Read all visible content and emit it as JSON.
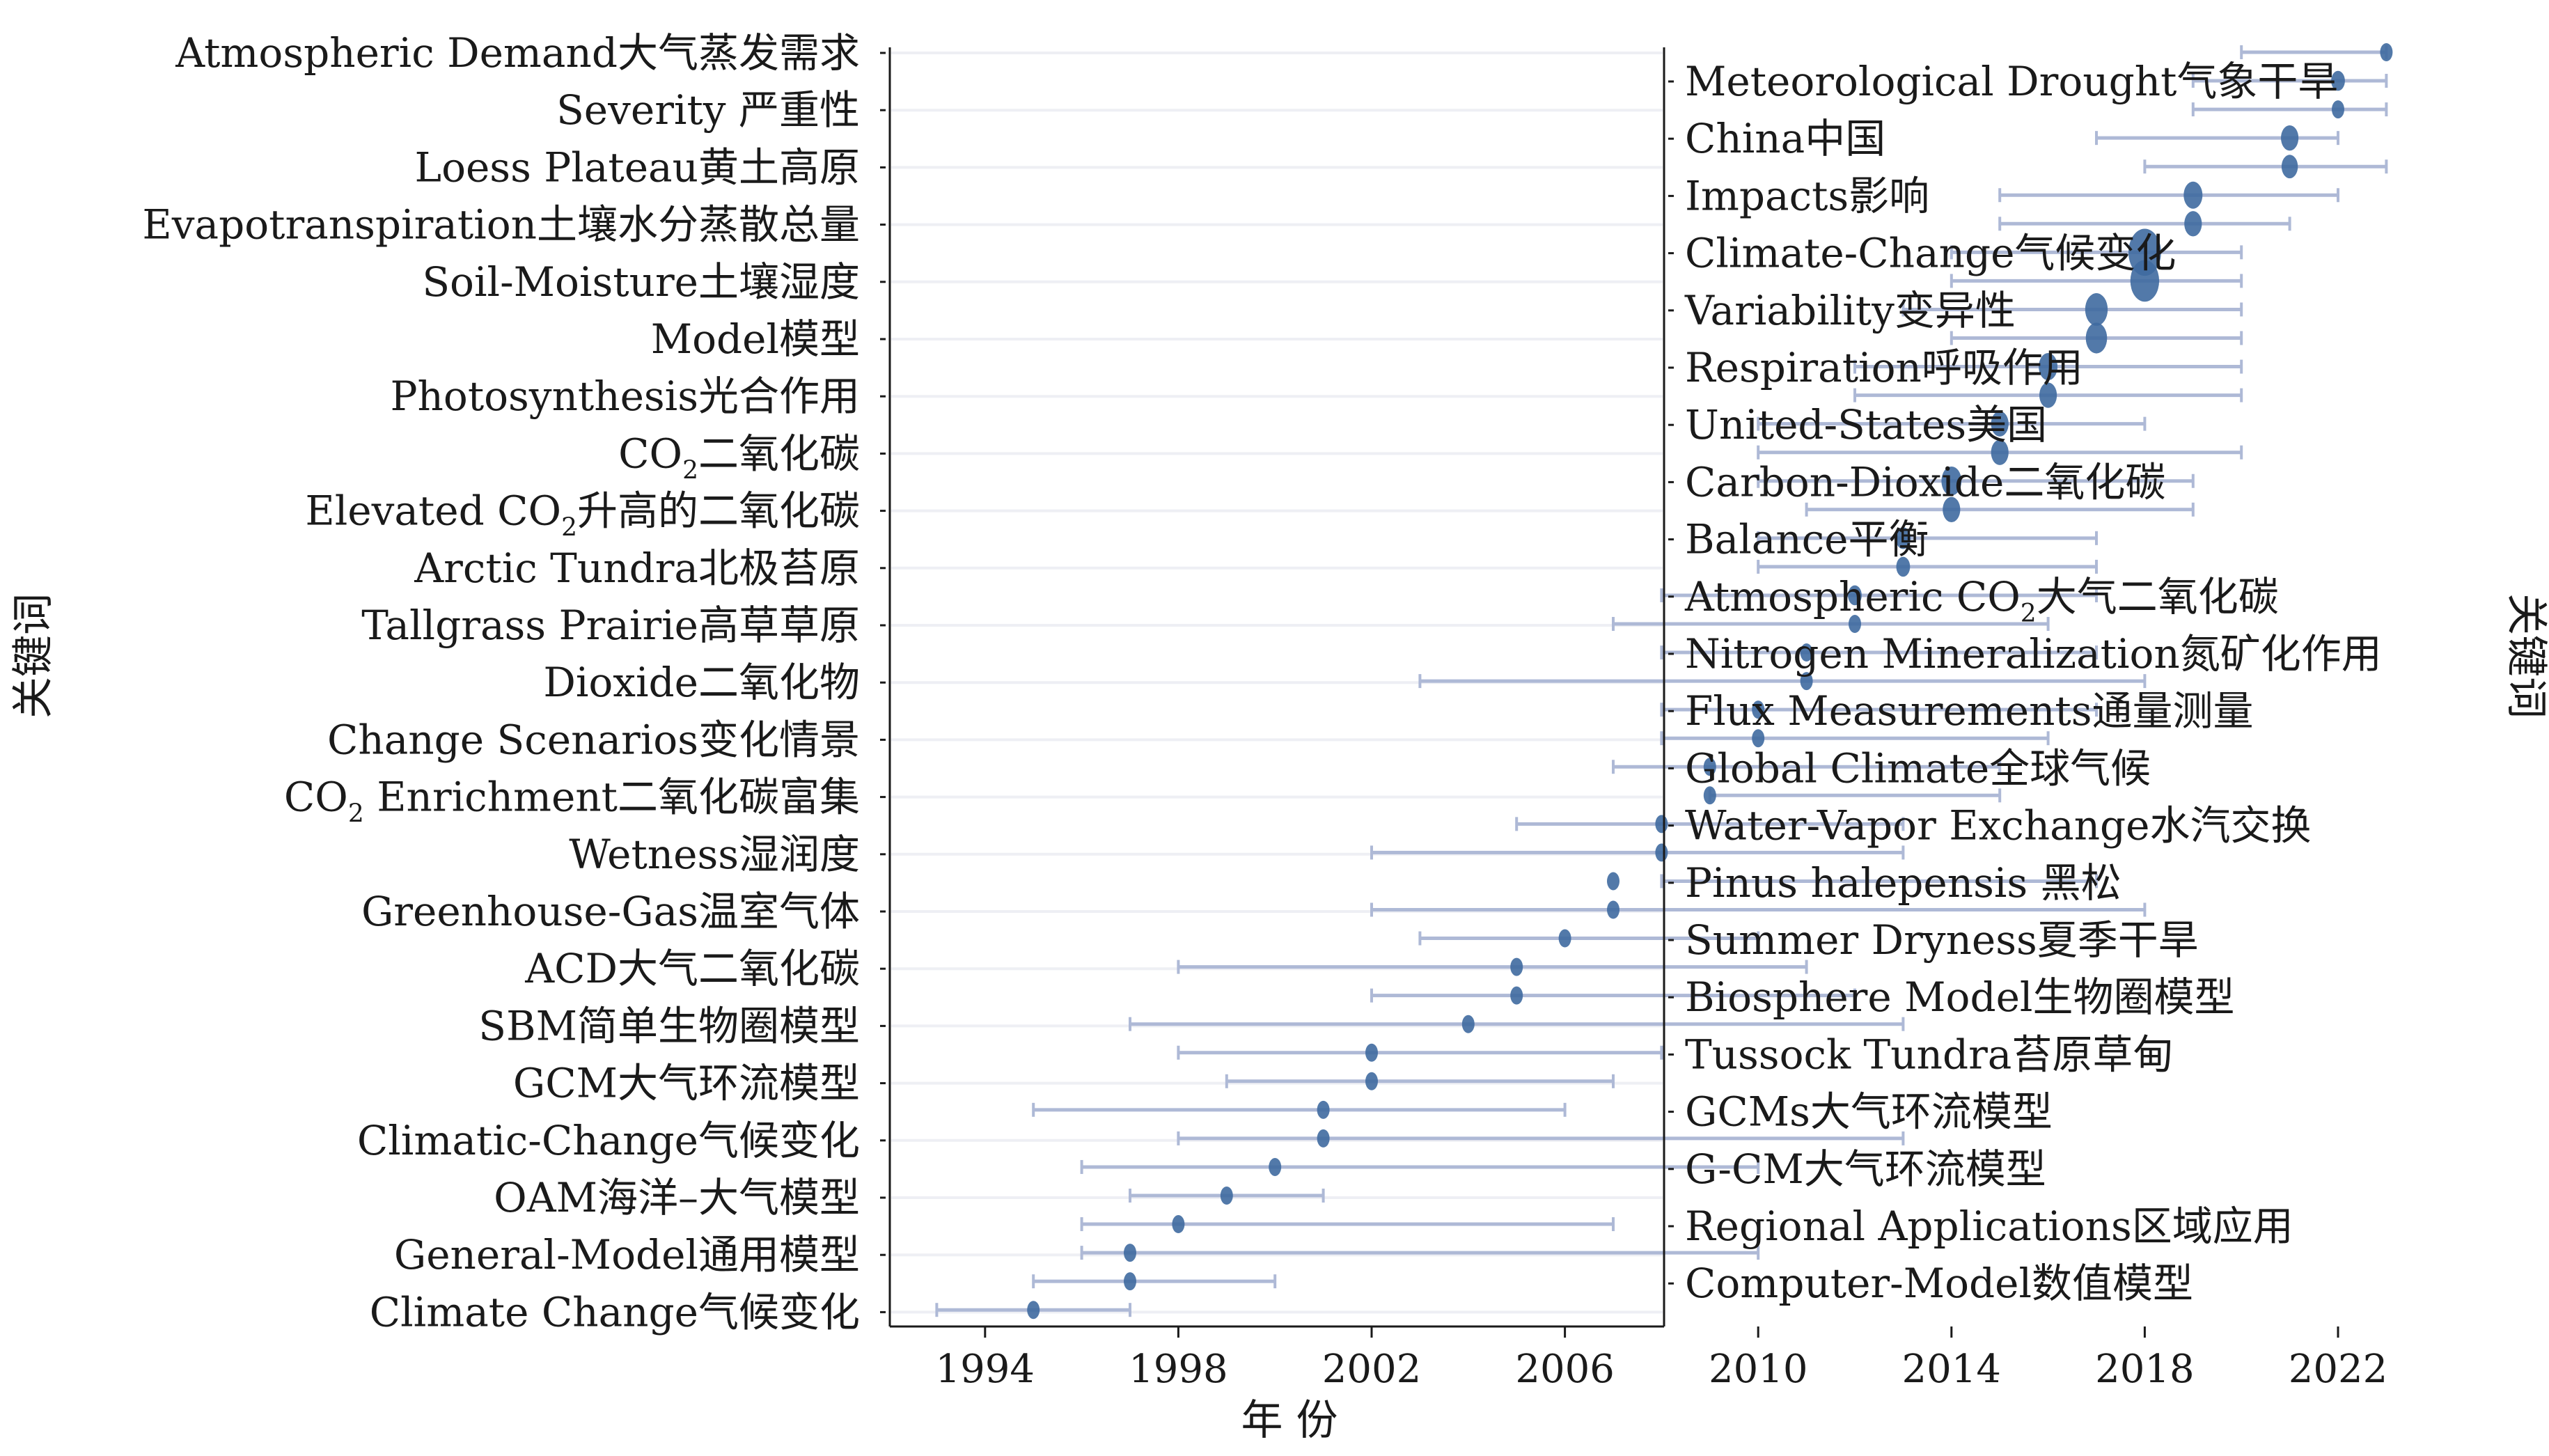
{
  "chart_data": {
    "type": "scatter",
    "title": "",
    "xlabel": "年 份",
    "ylabel_left": "关键词",
    "ylabel_right": "关键词",
    "xlim": [
      1992,
      2024
    ],
    "x_ticks": [
      1994,
      1998,
      2002,
      2006,
      2010,
      2014,
      2018,
      2022
    ],
    "colors": {
      "point": "#3f6aa0",
      "range": "#aeb9d6",
      "gridline": "#eeeff4",
      "axis": "#1a1a1a"
    },
    "left_labels": [
      "Atmospheric Demand大气蒸发需求",
      "Severity 严重性",
      "Loess Plateau黄土高原",
      "Evapotranspiration土壤水分蒸散总量",
      "Soil-Moisture土壤湿度",
      "Model模型",
      "Photosynthesis光合作用",
      "CO₂二氧化碳",
      "Elevated CO₂升高的二氧化碳",
      "Arctic Tundra北极苔原",
      "Tallgrass Prairie高草草原",
      "Dioxide二氧化物",
      "Change Scenarios变化情景",
      "CO₂ Enrichment二氧化碳富集",
      "Wetness湿润度",
      "Greenhouse-Gas温室气体",
      "ACD大气二氧化碳",
      "SBM简单生物圈模型",
      "GCM大气环流模型",
      "Climatic-Change气候变化",
      "OAM海洋–大气模型",
      "General-Model通用模型",
      "Climate Change气候变化"
    ],
    "right_labels": [
      "Meteorological Drought气象干旱",
      "China中国",
      "Impacts影响",
      "Climate-Change气候变化",
      "Variability变异性",
      "Respiration呼吸作用",
      "United-States美国",
      "Carbon-Dioxide二氧化碳",
      "Balance平衡",
      "Atmospheric CO₂大气二氧化碳",
      "Nitrogen Mineralization氮矿化作用",
      "Flux Measurements通量测量",
      "Global Climate全球气候",
      "Water-Vapor Exchange水汽交换",
      "Pinus halepensis 黑松",
      "Summer Dryness夏季干旱",
      "Biosphere Model生物圈模型",
      "Tussock Tundra苔原草甸",
      "GCMs大气环流模型",
      "G-CM大气环流模型",
      "Regional Applications区域应用",
      "Computer-Model数值模型"
    ],
    "points": [
      {
        "label": "Atmospheric Demand大气蒸发需求",
        "year": 2023,
        "start": 2020,
        "end": 2023,
        "size": 1.0
      },
      {
        "label": "Meteorological Drought气象干旱",
        "year": 2022,
        "start": 2019,
        "end": 2023,
        "size": 1.1
      },
      {
        "label": "Severity 严重性",
        "year": 2022,
        "start": 2019,
        "end": 2023,
        "size": 1.0
      },
      {
        "label": "China中国",
        "year": 2021,
        "start": 2017,
        "end": 2022,
        "size": 1.4
      },
      {
        "label": "Loess Plateau黄土高原",
        "year": 2021,
        "start": 2018,
        "end": 2023,
        "size": 1.3
      },
      {
        "label": "Impacts影响",
        "year": 2019,
        "start": 2015,
        "end": 2022,
        "size": 1.5
      },
      {
        "label": "Evapotranspiration土壤水分蒸散总量",
        "year": 2019,
        "start": 2015,
        "end": 2021,
        "size": 1.4
      },
      {
        "label": "Climate-Change气候变化",
        "year": 2018,
        "start": 2014,
        "end": 2020,
        "size": 2.6
      },
      {
        "label": "Soil-Moisture土壤湿度",
        "year": 2018,
        "start": 2014,
        "end": 2020,
        "size": 2.3
      },
      {
        "label": "Variability变异性",
        "year": 2017,
        "start": 2013,
        "end": 2020,
        "size": 1.8
      },
      {
        "label": "Model模型",
        "year": 2017,
        "start": 2014,
        "end": 2020,
        "size": 1.7
      },
      {
        "label": "Respiration呼吸作用",
        "year": 2016,
        "start": 2012,
        "end": 2020,
        "size": 1.5
      },
      {
        "label": "Photosynthesis光合作用",
        "year": 2016,
        "start": 2012,
        "end": 2020,
        "size": 1.4
      },
      {
        "label": "United-States美国",
        "year": 2015,
        "start": 2010,
        "end": 2018,
        "size": 1.4
      },
      {
        "label": "CO₂二氧化碳",
        "year": 2015,
        "start": 2010,
        "end": 2020,
        "size": 1.4
      },
      {
        "label": "Carbon-Dioxide二氧化碳",
        "year": 2014,
        "start": 2010,
        "end": 2019,
        "size": 1.6
      },
      {
        "label": "Elevated CO₂升高的二氧化碳",
        "year": 2014,
        "start": 2011,
        "end": 2019,
        "size": 1.4
      },
      {
        "label": "Balance平衡",
        "year": 2013,
        "start": 2010,
        "end": 2017,
        "size": 1.2
      },
      {
        "label": "Arctic Tundra北极苔原",
        "year": 2013,
        "start": 2010,
        "end": 2017,
        "size": 1.1
      },
      {
        "label": "Atmospheric CO₂大气二氧化碳",
        "year": 2012,
        "start": 2008,
        "end": 2017,
        "size": 1.1
      },
      {
        "label": "Tallgrass Prairie高草草原",
        "year": 2012,
        "start": 2007,
        "end": 2016,
        "size": 1.0
      },
      {
        "label": "Nitrogen Mineralization氮矿化作用",
        "year": 2011,
        "start": 2008,
        "end": 2017,
        "size": 1.0
      },
      {
        "label": "Dioxide二氧化物",
        "year": 2011,
        "start": 2003,
        "end": 2018,
        "size": 1.0
      },
      {
        "label": "Flux Measurements通量测量",
        "year": 2010,
        "start": 2008,
        "end": 2017,
        "size": 1.0
      },
      {
        "label": "Change Scenarios变化情景",
        "year": 2010,
        "start": 2008,
        "end": 2016,
        "size": 1.0
      },
      {
        "label": "Global Climate全球气候",
        "year": 2009,
        "start": 2007,
        "end": 2015,
        "size": 1.0
      },
      {
        "label": "CO₂ Enrichment二氧化碳富集",
        "year": 2009,
        "start": 2009,
        "end": 2015,
        "size": 1.0
      },
      {
        "label": "Water-Vapor Exchange水汽交换",
        "year": 2008,
        "start": 2005,
        "end": 2013,
        "size": 1.0
      },
      {
        "label": "Wetness湿润度",
        "year": 2008,
        "start": 2002,
        "end": 2013,
        "size": 1.0
      },
      {
        "label": "Pinus halepensis 黑松",
        "year": 2007,
        "start": 2008,
        "end": 2017,
        "size": 1.0
      },
      {
        "label": "Greenhouse-Gas温室气体",
        "year": 2007,
        "start": 2002,
        "end": 2018,
        "size": 1.0
      },
      {
        "label": "Summer Dryness夏季干旱",
        "year": 2006,
        "start": 2003,
        "end": 2010,
        "size": 1.0
      },
      {
        "label": "ACD大气二氧化碳",
        "year": 2005,
        "start": 1998,
        "end": 2011,
        "size": 1.0
      },
      {
        "label": "Biosphere Model生物圈模型",
        "year": 2005,
        "start": 2002,
        "end": 2012,
        "size": 1.0
      },
      {
        "label": "SBM简单生物圈模型",
        "year": 2004,
        "start": 1997,
        "end": 2013,
        "size": 1.0
      },
      {
        "label": "Tussock Tundra苔原草甸",
        "year": 2002,
        "start": 1998,
        "end": 2008,
        "size": 1.0
      },
      {
        "label": "GCM大气环流模型",
        "year": 2002,
        "start": 1999,
        "end": 2007,
        "size": 1.0
      },
      {
        "label": "GCMs大气环流模型",
        "year": 2001,
        "start": 1995,
        "end": 2006,
        "size": 1.0
      },
      {
        "label": "Climatic-Change气候变化",
        "year": 2001,
        "start": 1998,
        "end": 2013,
        "size": 1.0
      },
      {
        "label": "G-CM大气环流模型",
        "year": 2000,
        "start": 1996,
        "end": 2010,
        "size": 1.0
      },
      {
        "label": "OAM海洋–大气模型",
        "year": 1999,
        "start": 1997,
        "end": 2001,
        "size": 1.0
      },
      {
        "label": "Regional Applications区域应用",
        "year": 1998,
        "start": 1996,
        "end": 2007,
        "size": 1.0
      },
      {
        "label": "General-Model通用模型",
        "year": 1997,
        "start": 1996,
        "end": 2010,
        "size": 1.0
      },
      {
        "label": "Computer-Model数值模型",
        "year": 1997,
        "start": 1995,
        "end": 2000,
        "size": 1.0
      },
      {
        "label": "Climate Change气候变化",
        "year": 1995,
        "start": 1993,
        "end": 1997,
        "size": 1.0
      }
    ]
  }
}
